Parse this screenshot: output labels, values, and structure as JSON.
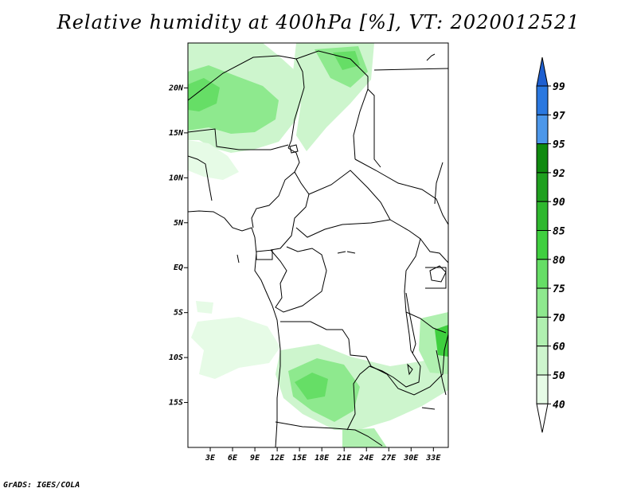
{
  "title": "Relative humidity at 400hPa [%], VT: 2020012521",
  "credit": "GrADS: IGES/COLA",
  "map": {
    "lon_range": [
      0,
      35
    ],
    "lat_range": [
      -20,
      25
    ],
    "lat_labels": [
      "20N",
      "15N",
      "10N",
      "5N",
      "EQ",
      "5S",
      "10S",
      "15S"
    ],
    "lat_values": [
      20,
      15,
      10,
      5,
      0,
      -5,
      -10,
      -15
    ],
    "lon_labels": [
      "3E",
      "6E",
      "9E",
      "12E",
      "15E",
      "18E",
      "21E",
      "24E",
      "27E",
      "30E",
      "33E"
    ],
    "lon_values": [
      3,
      6,
      9,
      12,
      15,
      18,
      21,
      24,
      27,
      30,
      33
    ]
  },
  "colorbar": {
    "levels": [
      "99",
      "97",
      "95",
      "92",
      "90",
      "85",
      "80",
      "75",
      "70",
      "60",
      "50",
      "40"
    ],
    "colors": {
      "above_97": "#1e5fd0",
      "97_99": "#2a78e0",
      "95_97": "#4c97ea",
      "92_95": "#0f8a0f",
      "90_92": "#1fa01f",
      "85_90": "#2eb82e",
      "80_85": "#3fcf3f",
      "75_80": "#66de66",
      "70_75": "#8ee98e",
      "60_70": "#b0f0b0",
      "50_60": "#cdf5cd",
      "40_50": "#e6fbe6",
      "below_40": "#ffffff"
    }
  }
}
